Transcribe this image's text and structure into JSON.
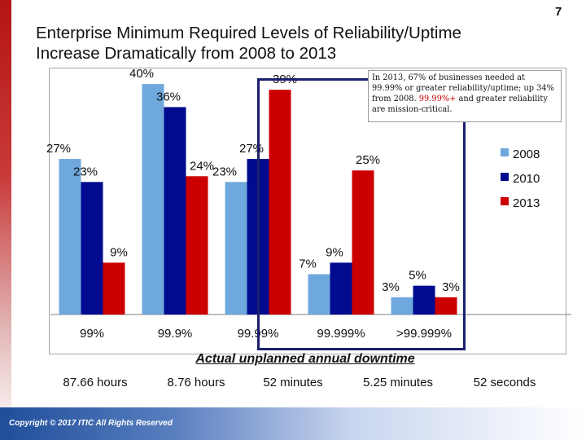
{
  "page": {
    "number": "7",
    "title_line1": "Enterprise Minimum Required Levels of Reliability/Uptime",
    "title_line2": "Increase Dramatically from 2008 to 2013",
    "copyright": "Copyright © 2017 ITIC All Rights Reserved",
    "callout": {
      "part1": "In 2013, 67% of businesses needed at 99.99% or greater reliability/uptime; up 34% from 2008. ",
      "part2": "99.99%+",
      "part3": " and greater reliability are mission-critical."
    },
    "downtime_title": "Actual unplanned annual downtime",
    "downtime_values": [
      "87.66 hours",
      "8.76 hours",
      "52 minutes",
      "5.25 minutes",
      "52 seconds"
    ]
  },
  "chart_data": {
    "type": "bar",
    "categories": [
      "99%",
      "99.9%",
      "99.99%",
      "99.999%",
      ">99.999%"
    ],
    "series": [
      {
        "name": "2008",
        "color": "#6fa8dc",
        "values": [
          27,
          40,
          23,
          7,
          3
        ]
      },
      {
        "name": "2010",
        "color": "#000b8f",
        "values": [
          23,
          36,
          27,
          9,
          5
        ]
      },
      {
        "name": "2013",
        "color": "#cc0000",
        "values": [
          9,
          24,
          39,
          25,
          3
        ]
      }
    ],
    "value_suffix": "%",
    "ylim": [
      0,
      42
    ],
    "grid": false,
    "legend_position": "right"
  }
}
